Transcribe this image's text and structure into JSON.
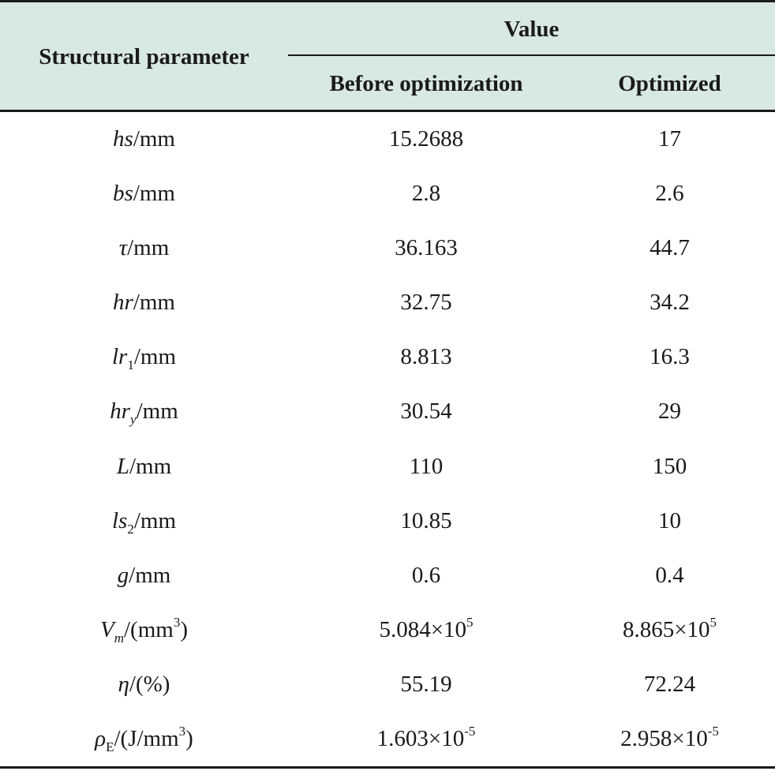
{
  "header": {
    "param_label": "Structural parameter",
    "value_label": "Value",
    "before_label": "Before optimization",
    "optimized_label": "Optimized"
  },
  "rows": [
    {
      "sym": "hs",
      "sub": "",
      "sub_italic": false,
      "sup": "",
      "unit": "/mm",
      "before": "15.2688",
      "optimized": "17"
    },
    {
      "sym": "bs",
      "sub": "",
      "sub_italic": false,
      "sup": "",
      "unit": "/mm",
      "before": "2.8",
      "optimized": "2.6"
    },
    {
      "sym": "τ",
      "sub": "",
      "sub_italic": false,
      "sup": "",
      "unit": "/mm",
      "before": "36.163",
      "optimized": "44.7"
    },
    {
      "sym": "hr",
      "sub": "",
      "sub_italic": false,
      "sup": "",
      "unit": "/mm",
      "before": "32.75",
      "optimized": "34.2"
    },
    {
      "sym": "lr",
      "sub": "1",
      "sub_italic": false,
      "sup": "",
      "unit": "/mm",
      "before": "8.813",
      "optimized": "16.3"
    },
    {
      "sym": "hr",
      "sub": "y",
      "sub_italic": true,
      "sup": "",
      "unit": "/mm",
      "before": "30.54",
      "optimized": "29"
    },
    {
      "sym": "L",
      "sub": "",
      "sub_italic": false,
      "sup": "",
      "unit": "/mm",
      "before": "110",
      "optimized": "150"
    },
    {
      "sym": "ls",
      "sub": "2",
      "sub_italic": false,
      "sup": "",
      "unit": "/mm",
      "before": "10.85",
      "optimized": "10"
    },
    {
      "sym": "g",
      "sub": "",
      "sub_italic": false,
      "sup": "",
      "unit": "/mm",
      "before": "0.6",
      "optimized": "0.4"
    },
    {
      "sym": "V",
      "sub": "m",
      "sub_italic": true,
      "unit": "/(mm",
      "sup": "3",
      "unit_end": ")",
      "before": "5.084×10",
      "before_exp": "5",
      "optimized": "8.865×10",
      "optimized_exp": "5"
    },
    {
      "sym": "η",
      "sub": "",
      "sub_italic": false,
      "sup": "",
      "unit": "/(%)",
      "before": "55.19",
      "optimized": "72.24"
    },
    {
      "sym": "ρ",
      "sub": "E",
      "sub_italic": false,
      "unit": "/(J/mm",
      "sup": "3",
      "unit_end": ")",
      "before": "1.603×10",
      "before_exp": "-5",
      "optimized": "2.958×10",
      "optimized_exp": "-5"
    }
  ]
}
